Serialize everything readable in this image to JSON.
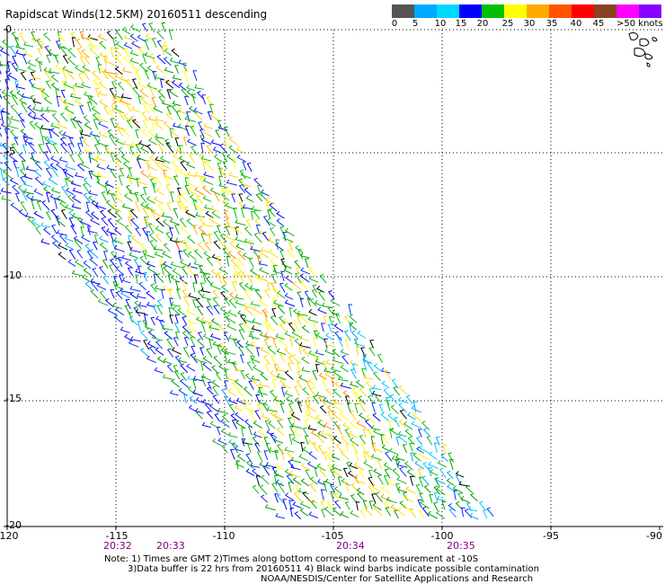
{
  "title": "Rapidscat Winds(12.5KM) 20160511 descending",
  "color_scale": {
    "labels": [
      "0",
      "5",
      "10",
      "15",
      "20",
      "25",
      "30",
      "35",
      "40",
      "45",
      ">50 knots"
    ],
    "colors": [
      "#555555",
      "#00aaff",
      "#00d0ff",
      "#0000ff",
      "#00c000",
      "#ffff00",
      "#ffaa00",
      "#ff5500",
      "#ff0000",
      "#884422",
      "#ff00ff",
      "#8800ff"
    ]
  },
  "map": {
    "lon_ticks": [
      "-120",
      "-115",
      "-110",
      "-105",
      "-100",
      "-95",
      "-90"
    ],
    "lat_ticks": [
      "0",
      "-5",
      "-10",
      "-15",
      "-20"
    ],
    "times": [
      "20:32",
      "20:33",
      "20:34",
      "20:35"
    ]
  },
  "notes": [
    "Note: 1) Times are GMT 2)Times along bottom correspond to measurement at -10S",
    "3)Data buffer is 22 hrs from 20160511 4) Black wind barbs indicate possible contamination",
    "NOAA/NESDIS/Center for Satellite Applications and Research"
  ]
}
